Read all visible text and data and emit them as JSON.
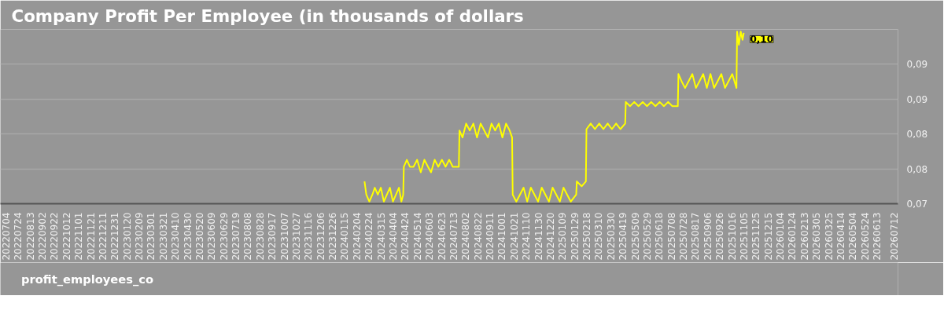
{
  "chart_data": {
    "type": "line",
    "title": "Company Profit Per Employee (in thousands of dollars",
    "x": [
      "2024-02-17",
      "2024-02-20",
      "2024-02-25",
      "2024-03-01",
      "2024-03-05",
      "2024-03-10",
      "2024-03-15",
      "2024-03-20",
      "2024-03-25",
      "2024-03-30",
      "2024-04-04",
      "2024-04-09",
      "2024-04-14",
      "2024-04-18",
      "2024-04-21",
      "2024-04-22",
      "2024-04-27",
      "2024-05-02",
      "2024-05-08",
      "2024-05-14",
      "2024-05-20",
      "2024-05-26",
      "2024-06-01",
      "2024-06-06",
      "2024-06-12",
      "2024-06-18",
      "2024-06-24",
      "2024-06-30",
      "2024-07-06",
      "2024-07-12",
      "2024-07-22",
      "2024-07-23",
      "2024-07-28",
      "2024-08-03",
      "2024-08-09",
      "2024-08-15",
      "2024-08-21",
      "2024-08-27",
      "2024-09-02",
      "2024-09-08",
      "2024-09-14",
      "2024-09-20",
      "2024-09-26",
      "2024-10-02",
      "2024-10-08",
      "2024-10-14",
      "2024-10-18",
      "2024-10-19",
      "2024-10-25",
      "2024-10-31",
      "2024-11-06",
      "2024-11-12",
      "2024-11-18",
      "2024-11-24",
      "2024-11-30",
      "2024-12-06",
      "2024-12-12",
      "2024-12-18",
      "2024-12-24",
      "2024-12-30",
      "2025-01-05",
      "2025-01-11",
      "2025-01-17",
      "2025-01-23",
      "2025-02-01",
      "2025-02-02",
      "2025-02-10",
      "2025-02-17",
      "2025-02-18",
      "2025-02-25",
      "2025-03-04",
      "2025-03-11",
      "2025-03-18",
      "2025-03-25",
      "2025-04-01",
      "2025-04-08",
      "2025-04-15",
      "2025-04-23",
      "2025-04-24",
      "2025-05-01",
      "2025-05-08",
      "2025-05-15",
      "2025-05-22",
      "2025-05-29",
      "2025-06-05",
      "2025-06-12",
      "2025-06-19",
      "2025-06-26",
      "2025-07-03",
      "2025-07-10",
      "2025-07-19",
      "2025-07-20",
      "2025-07-25",
      "2025-07-31",
      "2025-08-06",
      "2025-08-12",
      "2025-08-18",
      "2025-08-24",
      "2025-08-30",
      "2025-09-05",
      "2025-09-11",
      "2025-09-17",
      "2025-09-23",
      "2025-09-29",
      "2025-10-05",
      "2025-10-11",
      "2025-10-17",
      "2025-10-24",
      "2025-10-25",
      "2025-10-28",
      "2025-10-31",
      "2025-11-03",
      "2025-11-05"
    ],
    "series": [
      {
        "name": "profit_employees_co",
        "color": "#ffff00",
        "values": [
          0.0752,
          0.0733,
          0.0723,
          0.0733,
          0.0743,
          0.0733,
          0.0743,
          0.0723,
          0.0733,
          0.0743,
          0.0723,
          0.0733,
          0.0743,
          0.0723,
          0.0733,
          0.0773,
          0.0783,
          0.0773,
          0.0773,
          0.0783,
          0.0765,
          0.0783,
          0.0773,
          0.0765,
          0.0783,
          0.0773,
          0.0783,
          0.0773,
          0.0783,
          0.0773,
          0.0773,
          0.0825,
          0.0815,
          0.0835,
          0.0825,
          0.0835,
          0.0815,
          0.0835,
          0.0825,
          0.0815,
          0.0835,
          0.0825,
          0.0835,
          0.0815,
          0.0835,
          0.0825,
          0.0815,
          0.0733,
          0.0723,
          0.0733,
          0.0743,
          0.0723,
          0.0743,
          0.0733,
          0.0723,
          0.0743,
          0.0733,
          0.0723,
          0.0743,
          0.0733,
          0.0723,
          0.0743,
          0.0733,
          0.0723,
          0.0733,
          0.0752,
          0.0745,
          0.0752,
          0.0827,
          0.0835,
          0.0827,
          0.0835,
          0.0827,
          0.0835,
          0.0827,
          0.0835,
          0.0827,
          0.0835,
          0.0866,
          0.086,
          0.0866,
          0.086,
          0.0866,
          0.086,
          0.0866,
          0.086,
          0.0866,
          0.086,
          0.0866,
          0.086,
          0.086,
          0.0906,
          0.0896,
          0.0886,
          0.0896,
          0.0906,
          0.0886,
          0.0896,
          0.0906,
          0.0886,
          0.0906,
          0.0886,
          0.0896,
          0.0906,
          0.0886,
          0.0896,
          0.0906,
          0.0886,
          0.0967,
          0.0948,
          0.0967,
          0.0955,
          0.0965
        ]
      }
    ],
    "xlim": [
      "2022-06-25",
      "2026-07-18"
    ],
    "xticks": [
      {
        "value": "2022-07-04",
        "label": "20220704"
      },
      {
        "value": "2022-07-24",
        "label": "20220724"
      },
      {
        "value": "2022-08-13",
        "label": "20220813"
      },
      {
        "value": "2022-09-02",
        "label": "20220902"
      },
      {
        "value": "2022-09-22",
        "label": "20220922"
      },
      {
        "value": "2022-10-12",
        "label": "20221012"
      },
      {
        "value": "2022-11-01",
        "label": "20221101"
      },
      {
        "value": "2022-11-21",
        "label": "20221121"
      },
      {
        "value": "2022-12-11",
        "label": "20221211"
      },
      {
        "value": "2022-12-31",
        "label": "20221231"
      },
      {
        "value": "2023-01-20",
        "label": "20230120"
      },
      {
        "value": "2023-02-09",
        "label": "20230209"
      },
      {
        "value": "2023-03-01",
        "label": "20230301"
      },
      {
        "value": "2023-03-21",
        "label": "20230321"
      },
      {
        "value": "2023-04-10",
        "label": "20230410"
      },
      {
        "value": "2023-04-30",
        "label": "20230430"
      },
      {
        "value": "2023-05-20",
        "label": "20230520"
      },
      {
        "value": "2023-06-09",
        "label": "20230609"
      },
      {
        "value": "2023-06-29",
        "label": "20230629"
      },
      {
        "value": "2023-07-19",
        "label": "20230719"
      },
      {
        "value": "2023-08-08",
        "label": "20230808"
      },
      {
        "value": "2023-08-28",
        "label": "20230828"
      },
      {
        "value": "2023-09-17",
        "label": "20230917"
      },
      {
        "value": "2023-10-07",
        "label": "20231007"
      },
      {
        "value": "2023-10-27",
        "label": "20231027"
      },
      {
        "value": "2023-11-16",
        "label": "20231116"
      },
      {
        "value": "2023-12-06",
        "label": "20231206"
      },
      {
        "value": "2023-12-26",
        "label": "20231226"
      },
      {
        "value": "2024-01-15",
        "label": "20240115"
      },
      {
        "value": "2024-02-04",
        "label": "20240204"
      },
      {
        "value": "2024-02-24",
        "label": "20240224"
      },
      {
        "value": "2024-03-15",
        "label": "20240315"
      },
      {
        "value": "2024-04-04",
        "label": "20240404"
      },
      {
        "value": "2024-04-24",
        "label": "20240424"
      },
      {
        "value": "2024-05-14",
        "label": "20240514"
      },
      {
        "value": "2024-06-03",
        "label": "20240603"
      },
      {
        "value": "2024-06-23",
        "label": "20240623"
      },
      {
        "value": "2024-07-13",
        "label": "20240713"
      },
      {
        "value": "2024-08-02",
        "label": "20240802"
      },
      {
        "value": "2024-08-22",
        "label": "20240822"
      },
      {
        "value": "2024-09-11",
        "label": "20240911"
      },
      {
        "value": "2024-10-01",
        "label": "20241001"
      },
      {
        "value": "2024-10-21",
        "label": "20241021"
      },
      {
        "value": "2024-11-10",
        "label": "20241110"
      },
      {
        "value": "2024-11-30",
        "label": "20241130"
      },
      {
        "value": "2024-12-20",
        "label": "20241220"
      },
      {
        "value": "2025-01-09",
        "label": "20250109"
      },
      {
        "value": "2025-01-29",
        "label": "20250129"
      },
      {
        "value": "2025-02-18",
        "label": "20250218"
      },
      {
        "value": "2025-03-10",
        "label": "20250310"
      },
      {
        "value": "2025-03-30",
        "label": "20250330"
      },
      {
        "value": "2025-04-19",
        "label": "20250419"
      },
      {
        "value": "2025-05-09",
        "label": "20250509"
      },
      {
        "value": "2025-05-29",
        "label": "20250529"
      },
      {
        "value": "2025-06-18",
        "label": "20250618"
      },
      {
        "value": "2025-07-08",
        "label": "20250708"
      },
      {
        "value": "2025-07-28",
        "label": "20250728"
      },
      {
        "value": "2025-08-17",
        "label": "20250817"
      },
      {
        "value": "2025-09-06",
        "label": "20250906"
      },
      {
        "value": "2025-09-26",
        "label": "20250926"
      },
      {
        "value": "2025-10-16",
        "label": "20251016"
      },
      {
        "value": "2025-11-05",
        "label": "20251105"
      },
      {
        "value": "2025-11-25",
        "label": "20251125"
      },
      {
        "value": "2025-12-15",
        "label": "20251215"
      },
      {
        "value": "2026-01-04",
        "label": "20260104"
      },
      {
        "value": "2026-01-24",
        "label": "20260124"
      },
      {
        "value": "2026-02-13",
        "label": "20260213"
      },
      {
        "value": "2026-03-05",
        "label": "20260305"
      },
      {
        "value": "2026-03-25",
        "label": "20260325"
      },
      {
        "value": "2026-04-14",
        "label": "20260414"
      },
      {
        "value": "2026-05-04",
        "label": "20260504"
      },
      {
        "value": "2026-05-24",
        "label": "20260524"
      },
      {
        "value": "2026-06-13",
        "label": "20260613"
      },
      {
        "value": "2026-07-12",
        "label": "20260712"
      }
    ],
    "ylim": [
      0.072,
      0.097
    ],
    "yticks": [
      {
        "value": 0.072,
        "label": "0,07"
      },
      {
        "value": 0.077,
        "label": "0,08"
      },
      {
        "value": 0.082,
        "label": "0,08"
      },
      {
        "value": 0.087,
        "label": "0,09"
      },
      {
        "value": 0.092,
        "label": "0,09"
      }
    ],
    "annotations": [
      {
        "text": "0,10",
        "x": "2025-11-05",
        "y": 0.0965
      }
    ],
    "grid": "y",
    "legend": "bottom left"
  }
}
